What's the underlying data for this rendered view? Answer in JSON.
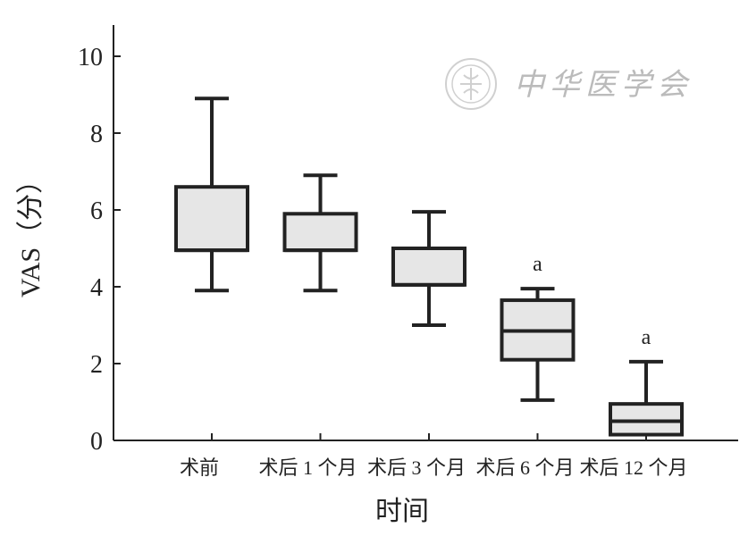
{
  "chart_data": {
    "type": "box",
    "categories": [
      "术前",
      "术后 1 个月",
      "术后 3 个月",
      "术后 6 个月",
      "术后 12 个月"
    ],
    "boxes": [
      {
        "min": 3.9,
        "q1": 4.95,
        "median": 4.95,
        "q3": 6.6,
        "max": 8.9,
        "annotation": ""
      },
      {
        "min": 3.9,
        "q1": 4.95,
        "median": 4.95,
        "q3": 5.9,
        "max": 6.9,
        "annotation": ""
      },
      {
        "min": 3.0,
        "q1": 4.05,
        "median": 4.05,
        "q3": 5.0,
        "max": 5.95,
        "annotation": ""
      },
      {
        "min": 1.05,
        "q1": 2.1,
        "median": 2.85,
        "q3": 3.65,
        "max": 3.95,
        "annotation": "a"
      },
      {
        "min": 0.15,
        "q1": 0.15,
        "median": 0.5,
        "q3": 0.95,
        "max": 2.05,
        "annotation": "a"
      }
    ],
    "yticks": [
      0,
      2,
      4,
      6,
      8,
      10
    ],
    "ylim": [
      0,
      10.8
    ],
    "xlabel": "时间",
    "ylabel": "VAS（分）",
    "grid": false,
    "legend": "none"
  },
  "watermark": {
    "text": "中华医学会"
  }
}
